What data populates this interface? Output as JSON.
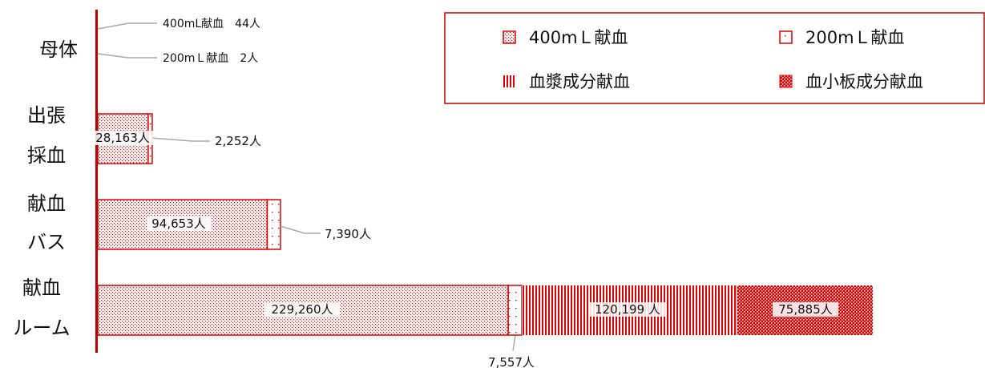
{
  "chart_data": {
    "type": "bar",
    "orientation": "horizontal",
    "stacked": true,
    "categories": [
      {
        "lines": [
          "母体"
        ]
      },
      {
        "lines": [
          "出張",
          "採血"
        ]
      },
      {
        "lines": [
          "献血",
          "バス"
        ]
      },
      {
        "lines": [
          "献血",
          "ルーム"
        ]
      }
    ],
    "series": [
      {
        "name": "400mＬ献血",
        "values": [
          44,
          28163,
          94653,
          229260
        ],
        "color": "#e00000",
        "pattern": "dots"
      },
      {
        "name": "200mＬ献血",
        "values": [
          2,
          2252,
          7390,
          7557
        ],
        "color": "#e00000",
        "pattern": "sparse-dots"
      },
      {
        "name": "血漿成分献血",
        "values": [
          0,
          0,
          0,
          120199
        ],
        "color": "#e00000",
        "pattern": "vertical-lines"
      },
      {
        "name": "血小板成分献血",
        "values": [
          0,
          0,
          0,
          75885
        ],
        "color": "#e00000",
        "pattern": "dense-checker"
      }
    ],
    "data_labels": {
      "mothership_400": "400mL献血　44人",
      "mothership_200": "200mＬ献血　2人",
      "mobile_400": "28,163人",
      "mobile_200": "2,252人",
      "bus_400": "94,653人",
      "bus_200": "7,390人",
      "room_400": "229,260人",
      "room_200": "7,557人",
      "room_plasma": "120,199 人",
      "room_platelet": "75,885人"
    },
    "legend": {
      "position": "top-right",
      "boxed": true
    },
    "grid": false
  }
}
